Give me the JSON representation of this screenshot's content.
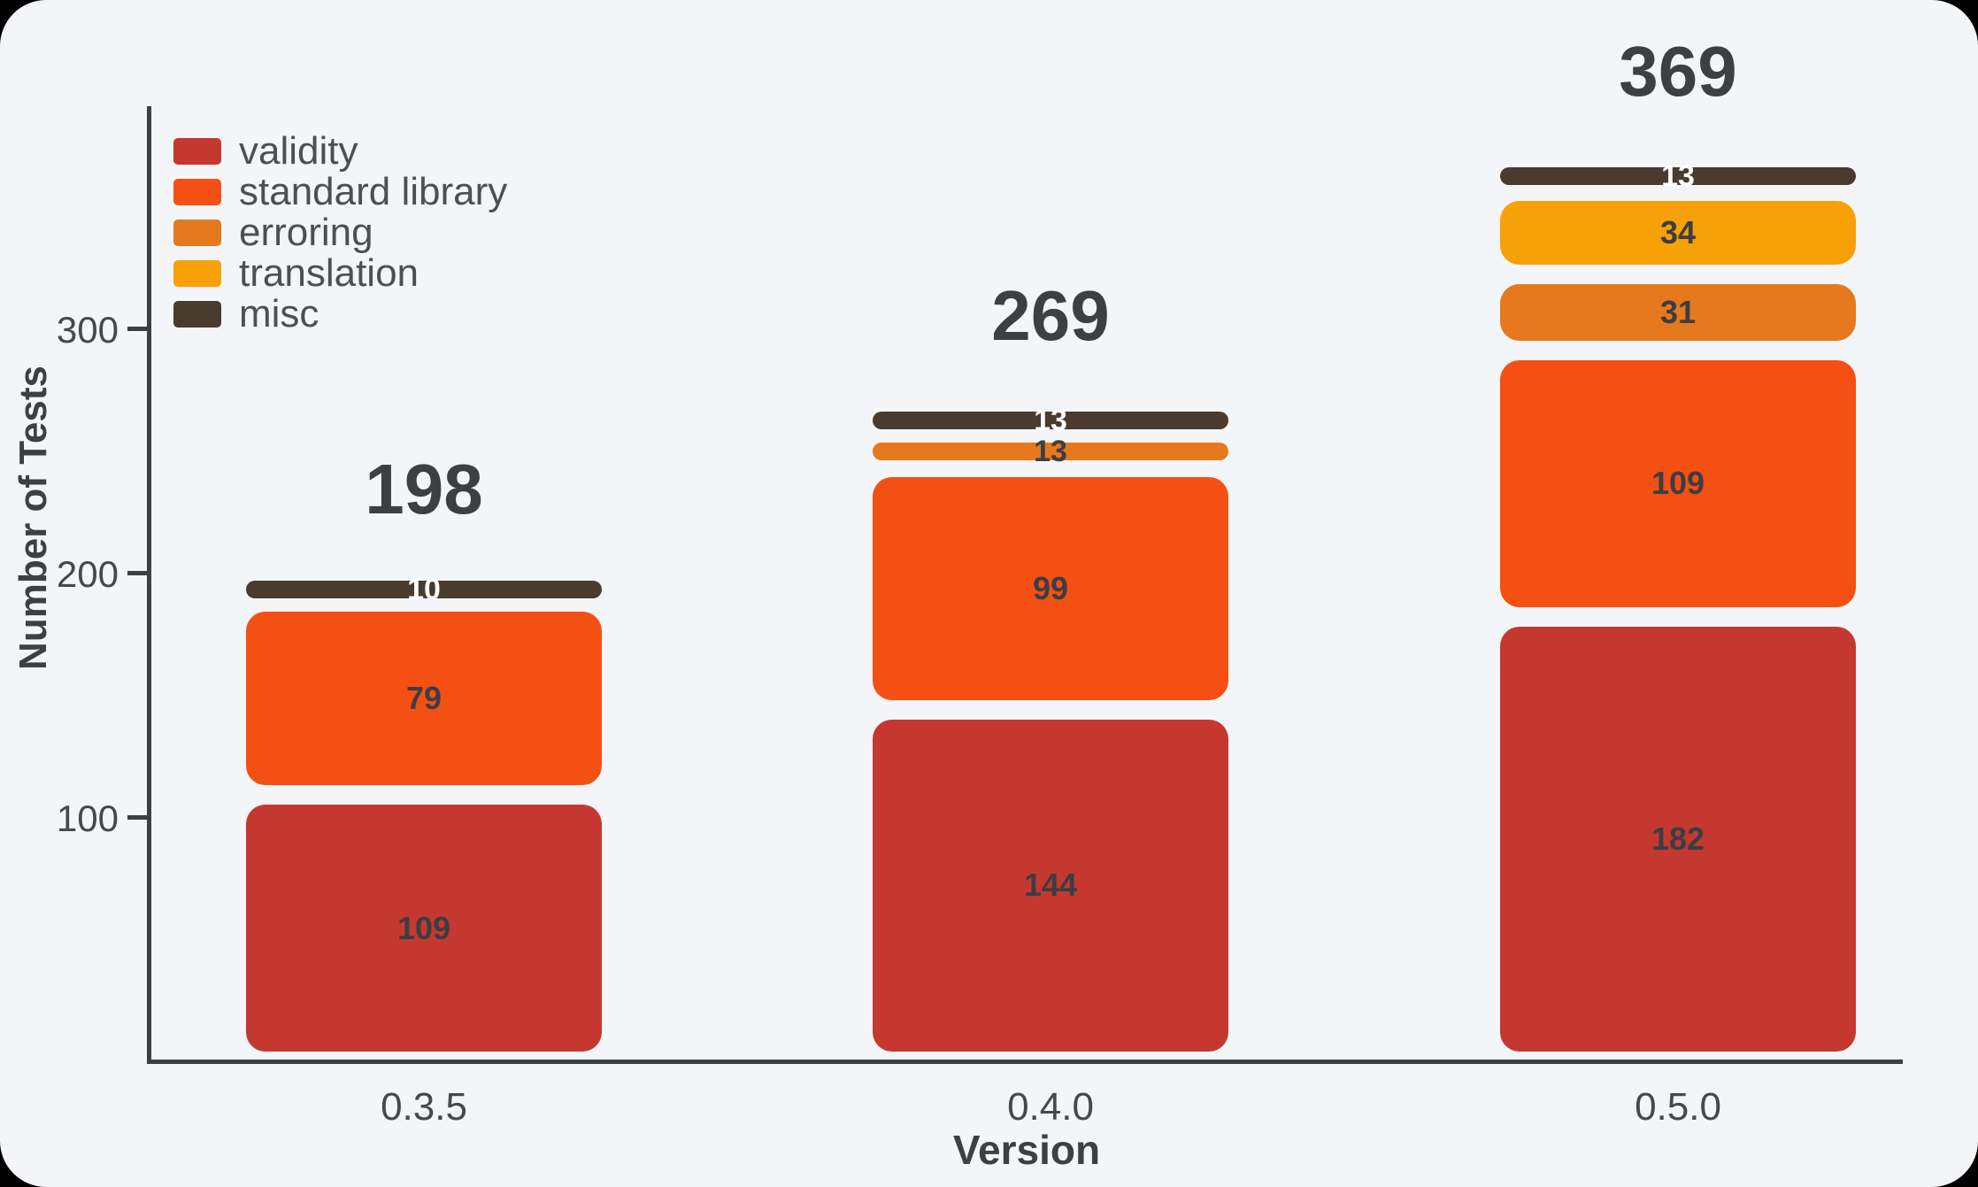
{
  "chart_data": {
    "type": "bar",
    "stacked": true,
    "title": "",
    "xlabel": "Version",
    "ylabel": "Number of Tests",
    "categories": [
      "0.3.5",
      "0.4.0",
      "0.5.0"
    ],
    "series": [
      {
        "name": "validity",
        "color": "#c5382f",
        "label_color": "#3b3e44",
        "values": [
          109,
          144,
          182
        ]
      },
      {
        "name": "standard library",
        "color": "#f45014",
        "label_color": "#3b3e44",
        "values": [
          79,
          99,
          109
        ]
      },
      {
        "name": "erroring",
        "color": "#e6781e",
        "label_color": "#3b3e44",
        "values": [
          0,
          13,
          31
        ]
      },
      {
        "name": "translation",
        "color": "#f8a008",
        "label_color": "#3b3e44",
        "values": [
          0,
          0,
          34
        ]
      },
      {
        "name": "misc",
        "color": "#4a3b2f",
        "label_color": "#ffffff",
        "values": [
          10,
          13,
          13
        ]
      }
    ],
    "totals": [
      198,
      269,
      369
    ],
    "yticks": [
      100,
      200,
      300
    ],
    "ylim": [
      0,
      390
    ],
    "grid": false,
    "legend_position": "top-left",
    "colors": {
      "background": "#f4f5f8",
      "outside": "#000000",
      "axis": "#3c4043",
      "text": "#45494e"
    }
  }
}
